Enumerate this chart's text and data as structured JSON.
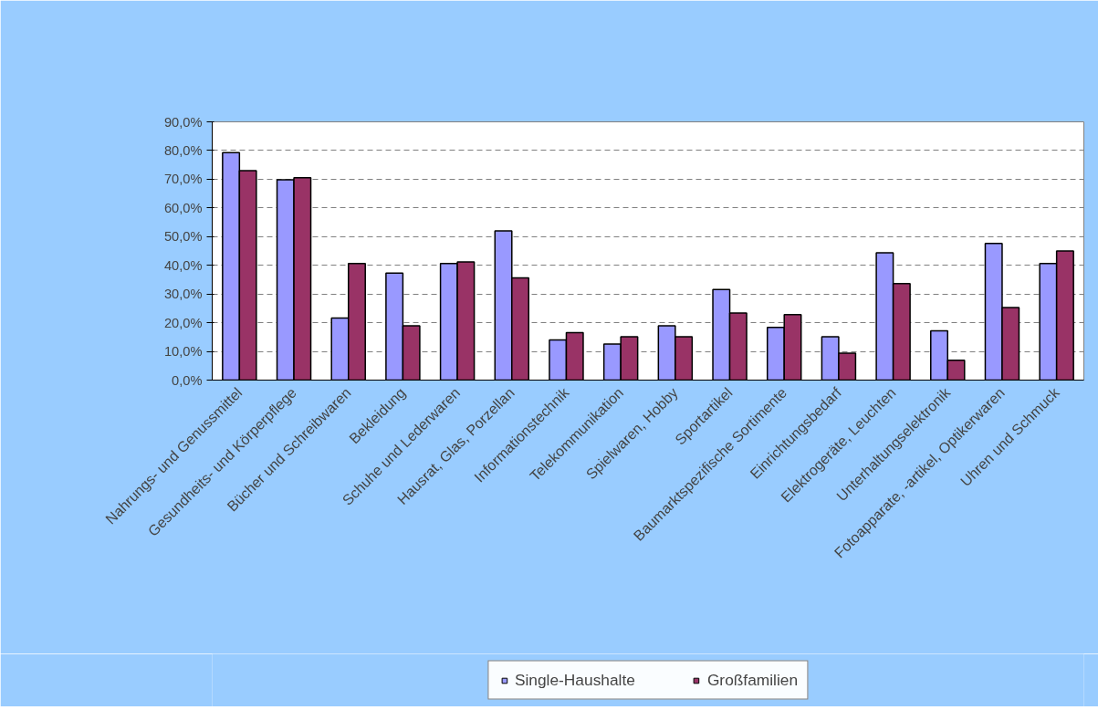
{
  "chart_data": {
    "type": "bar",
    "categories": [
      "Nahrungs- und Genussmittel",
      "Gesundheits- und Körperpflege",
      "Bücher und Schreibwaren",
      "Bekleidung",
      "Schuhe und Lederwaren",
      "Hausrat, Glas, Porzellan",
      "Informationstechnik",
      "Telekommunikation",
      "Spielwaren, Hobby",
      "Sportartikel",
      "Baumarktspezifische Sortimente",
      "Einrichtungsbedarf",
      "Elektrogeräte, Leuchten",
      "Unterhaltungselektronik",
      "Fotoapparate, -artikel, Optikerwaren",
      "Uhren und Schmuck"
    ],
    "series": [
      {
        "name": "Single-Haushalte",
        "color": "#9999ff",
        "values": [
          79.3,
          69.8,
          21.6,
          37.3,
          40.6,
          52.0,
          14.0,
          12.6,
          18.9,
          31.6,
          18.4,
          15.1,
          44.4,
          17.2,
          47.6,
          40.6
        ]
      },
      {
        "name": "Großfamilien",
        "color": "#993366",
        "values": [
          73.0,
          70.5,
          40.6,
          18.9,
          41.2,
          35.6,
          16.5,
          15.1,
          15.1,
          23.4,
          22.8,
          9.4,
          33.6,
          6.9,
          25.3,
          45.0
        ]
      }
    ],
    "ylim": [
      0,
      90
    ],
    "yticks": [
      {
        "value": 0,
        "label": "0,0%"
      },
      {
        "value": 10,
        "label": "10,0%"
      },
      {
        "value": 20,
        "label": "20,0%"
      },
      {
        "value": 30,
        "label": "30,0%"
      },
      {
        "value": 40,
        "label": "40,0%"
      },
      {
        "value": 50,
        "label": "50,0%"
      },
      {
        "value": 60,
        "label": "60,0%"
      },
      {
        "value": 70,
        "label": "70,0%"
      },
      {
        "value": 80,
        "label": "80,0%"
      },
      {
        "value": 90,
        "label": "90,0%"
      }
    ],
    "grid": "y",
    "legend": "bottom"
  }
}
